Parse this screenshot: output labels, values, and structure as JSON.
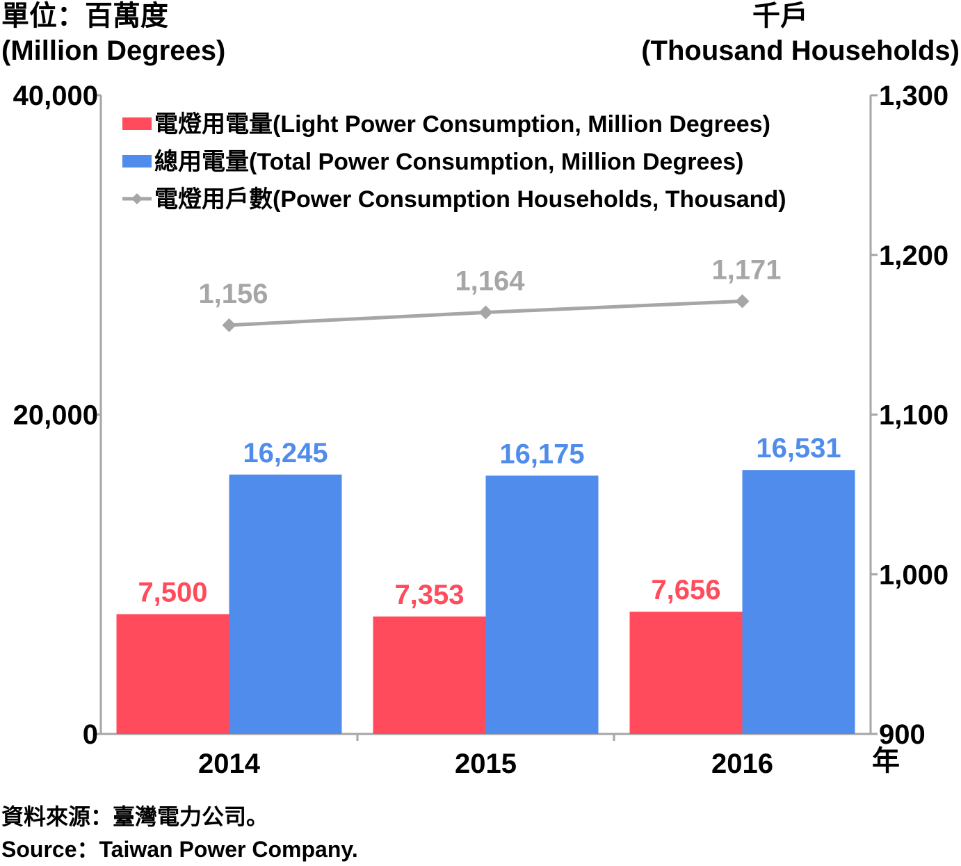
{
  "units": {
    "left_zh": "單位：百萬度",
    "left_en": "(Million Degrees)",
    "right_zh": "千戶",
    "right_en": "(Thousand Households)",
    "x_unit": "年"
  },
  "source": {
    "zh": "資料來源：臺灣電力公司。",
    "en": "Source：Taiwan Power Company."
  },
  "chart_data": {
    "type": "bar",
    "categories": [
      "2014",
      "2015",
      "2016"
    ],
    "left_axis": {
      "ylim": [
        0,
        40000
      ],
      "ticks": [
        "0",
        "20,000",
        "40,000"
      ],
      "tick_values": [
        0,
        20000,
        40000
      ]
    },
    "right_axis": {
      "ylim": [
        900,
        1300
      ],
      "ticks": [
        "900",
        "1,000",
        "1,100",
        "1,200",
        "1,300"
      ],
      "tick_values": [
        900,
        1000,
        1100,
        1200,
        1300
      ]
    },
    "series": [
      {
        "name": "電燈用電量(Light Power Consumption, Million Degrees)",
        "type": "bar",
        "axis": "left",
        "color": "#ff4b5c",
        "values": [
          7500,
          7353,
          7656
        ],
        "labels": [
          "7,500",
          "7,353",
          "7,656"
        ]
      },
      {
        "name": "總用電量(Total Power Consumption, Million Degrees)",
        "type": "bar",
        "axis": "left",
        "color": "#4f8ceb",
        "values": [
          16245,
          16175,
          16531
        ],
        "labels": [
          "16,245",
          "16,175",
          "16,531"
        ]
      },
      {
        "name": "電燈用戶數(Power Consumption Households, Thousand)",
        "type": "line",
        "axis": "right",
        "color": "#a6a6a6",
        "values": [
          1156,
          1164,
          1171
        ],
        "labels": [
          "1,156",
          "1,164",
          "1,171"
        ]
      }
    ],
    "legend_position": "top-left",
    "grid": false
  }
}
